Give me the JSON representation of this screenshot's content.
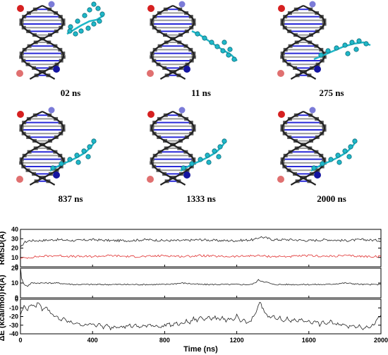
{
  "snapshots": [
    {
      "label": "02 ns",
      "ligand_state": "free"
    },
    {
      "label": "11 ns",
      "ligand_state": "approach"
    },
    {
      "label": "275 ns",
      "ligand_state": "groove"
    },
    {
      "label": "837 ns",
      "ligand_state": "bound"
    },
    {
      "label": "1333 ns",
      "ligand_state": "bound"
    },
    {
      "label": "2000 ns",
      "ligand_state": "bound"
    }
  ],
  "colors": {
    "backbone": "#222222",
    "base_blue": "#2a2ad8",
    "sugar": "#555555",
    "ligand": "#1fb8c8",
    "ligand_dark": "#0d6d7c",
    "end_red": "#d62020",
    "end_pink": "#e07070",
    "end_lightblue": "#7b7bd8",
    "end_darkblue": "#1414a0",
    "rmsd_black": "#222222",
    "rmsd_red": "#e03030"
  },
  "chart_data": [
    {
      "type": "line",
      "ylabel": "RMSD(Å)",
      "xlim": [
        0,
        2000
      ],
      "ylim": [
        0,
        40
      ],
      "yticks": [
        0,
        10,
        20,
        30,
        40
      ],
      "series": [
        {
          "values": [
            [
              0,
              20
            ],
            [
              20,
              26
            ],
            [
              50,
              28
            ],
            [
              100,
              28
            ],
            [
              200,
              29
            ],
            [
              300,
              28
            ],
            [
              400,
              29
            ],
            [
              500,
              28
            ],
            [
              600,
              28
            ],
            [
              700,
              29
            ],
            [
              800,
              28
            ],
            [
              900,
              28
            ],
            [
              1000,
              29
            ],
            [
              1100,
              28
            ],
            [
              1200,
              28
            ],
            [
              1300,
              29
            ],
            [
              1330,
              32
            ],
            [
              1360,
              31
            ],
            [
              1400,
              29
            ],
            [
              1500,
              29
            ],
            [
              1600,
              28
            ],
            [
              1700,
              29
            ],
            [
              1800,
              28
            ],
            [
              1900,
              29
            ],
            [
              2000,
              28
            ]
          ],
          "color_key": "rmsd_black"
        },
        {
          "values": [
            [
              0,
              9
            ],
            [
              50,
              10
            ],
            [
              100,
              11
            ],
            [
              200,
              12
            ],
            [
              300,
              11
            ],
            [
              400,
              11
            ],
            [
              500,
              12
            ],
            [
              600,
              11
            ],
            [
              700,
              11
            ],
            [
              800,
              12
            ],
            [
              900,
              11
            ],
            [
              1000,
              12
            ],
            [
              1100,
              11
            ],
            [
              1200,
              11
            ],
            [
              1300,
              12
            ],
            [
              1400,
              11
            ],
            [
              1500,
              11
            ],
            [
              1600,
              12
            ],
            [
              1700,
              11
            ],
            [
              1800,
              12
            ],
            [
              1900,
              11
            ],
            [
              2000,
              11
            ]
          ],
          "color_key": "rmsd_red"
        }
      ]
    },
    {
      "type": "line",
      "ylabel": "R(Å)",
      "xlim": [
        0,
        2000
      ],
      "ylim": [
        0,
        20
      ],
      "yticks": [
        0,
        10,
        20
      ],
      "series": [
        {
          "values": [
            [
              0,
              21
            ],
            [
              5,
              14
            ],
            [
              10,
              12
            ],
            [
              20,
              9
            ],
            [
              40,
              8
            ],
            [
              60,
              10
            ],
            [
              100,
              10
            ],
            [
              200,
              10
            ],
            [
              300,
              9
            ],
            [
              400,
              9
            ],
            [
              500,
              9
            ],
            [
              600,
              9
            ],
            [
              700,
              9
            ],
            [
              800,
              9
            ],
            [
              900,
              10
            ],
            [
              1000,
              9
            ],
            [
              1100,
              9
            ],
            [
              1200,
              9
            ],
            [
              1280,
              9
            ],
            [
              1300,
              10
            ],
            [
              1320,
              12
            ],
            [
              1350,
              11
            ],
            [
              1380,
              10
            ],
            [
              1400,
              9
            ],
            [
              1500,
              9
            ],
            [
              1600,
              9
            ],
            [
              1700,
              9
            ],
            [
              1800,
              10
            ],
            [
              1900,
              9
            ],
            [
              2000,
              9
            ]
          ],
          "color_key": "rmsd_black"
        }
      ]
    },
    {
      "type": "line",
      "ylabel": "ΔE (kcal/mol)",
      "xlabel": "Time (ns)",
      "xlim": [
        0,
        2000
      ],
      "ylim": [
        -40,
        0
      ],
      "yticks": [
        0,
        -10,
        -20,
        -30,
        -40
      ],
      "xticks": [
        0,
        400,
        800,
        1200,
        1600,
        2000
      ],
      "series": [
        {
          "values": [
            [
              0,
              -18
            ],
            [
              20,
              -8
            ],
            [
              40,
              -12
            ],
            [
              60,
              -5
            ],
            [
              80,
              -10
            ],
            [
              100,
              -3
            ],
            [
              120,
              -12
            ],
            [
              140,
              -8
            ],
            [
              160,
              -14
            ],
            [
              180,
              -18
            ],
            [
              200,
              -20
            ],
            [
              220,
              -24
            ],
            [
              240,
              -22
            ],
            [
              260,
              -27
            ],
            [
              280,
              -25
            ],
            [
              300,
              -30
            ],
            [
              320,
              -27
            ],
            [
              340,
              -32
            ],
            [
              360,
              -28
            ],
            [
              380,
              -30
            ],
            [
              400,
              -27
            ],
            [
              420,
              -31
            ],
            [
              440,
              -29
            ],
            [
              460,
              -33
            ],
            [
              480,
              -30
            ],
            [
              500,
              -34
            ],
            [
              520,
              -31
            ],
            [
              540,
              -32
            ],
            [
              560,
              -30
            ],
            [
              580,
              -33
            ],
            [
              600,
              -29
            ],
            [
              620,
              -32
            ],
            [
              640,
              -30
            ],
            [
              660,
              -33
            ],
            [
              680,
              -30
            ],
            [
              700,
              -32
            ],
            [
              720,
              -29
            ],
            [
              740,
              -31
            ],
            [
              760,
              -30
            ],
            [
              780,
              -33
            ],
            [
              800,
              -30
            ],
            [
              820,
              -28
            ],
            [
              840,
              -31
            ],
            [
              860,
              -27
            ],
            [
              880,
              -30
            ],
            [
              900,
              -28
            ],
            [
              920,
              -25
            ],
            [
              940,
              -28
            ],
            [
              960,
              -22
            ],
            [
              980,
              -25
            ],
            [
              1000,
              -20
            ],
            [
              1020,
              -24
            ],
            [
              1040,
              -19
            ],
            [
              1060,
              -23
            ],
            [
              1080,
              -21
            ],
            [
              1100,
              -24
            ],
            [
              1120,
              -20
            ],
            [
              1140,
              -25
            ],
            [
              1160,
              -22
            ],
            [
              1180,
              -26
            ],
            [
              1200,
              -19
            ],
            [
              1220,
              -27
            ],
            [
              1240,
              -23
            ],
            [
              1260,
              -28
            ],
            [
              1280,
              -24
            ],
            [
              1300,
              -18
            ],
            [
              1320,
              -8
            ],
            [
              1330,
              -3
            ],
            [
              1340,
              -10
            ],
            [
              1360,
              -16
            ],
            [
              1380,
              -21
            ],
            [
              1400,
              -18
            ],
            [
              1420,
              -24
            ],
            [
              1440,
              -21
            ],
            [
              1460,
              -25
            ],
            [
              1480,
              -22
            ],
            [
              1500,
              -27
            ],
            [
              1520,
              -23
            ],
            [
              1540,
              -26
            ],
            [
              1560,
              -22
            ],
            [
              1580,
              -27
            ],
            [
              1600,
              -24
            ],
            [
              1620,
              -28
            ],
            [
              1640,
              -25
            ],
            [
              1660,
              -30
            ],
            [
              1680,
              -26
            ],
            [
              1700,
              -29
            ],
            [
              1720,
              -25
            ],
            [
              1740,
              -30
            ],
            [
              1760,
              -27
            ],
            [
              1780,
              -31
            ],
            [
              1800,
              -28
            ],
            [
              1820,
              -32
            ],
            [
              1840,
              -29
            ],
            [
              1860,
              -33
            ],
            [
              1880,
              -30
            ],
            [
              1900,
              -34
            ],
            [
              1920,
              -30
            ],
            [
              1940,
              -33
            ],
            [
              1960,
              -29
            ],
            [
              1980,
              -24
            ],
            [
              2000,
              -18
            ]
          ],
          "color_key": "rmsd_black"
        }
      ]
    }
  ]
}
